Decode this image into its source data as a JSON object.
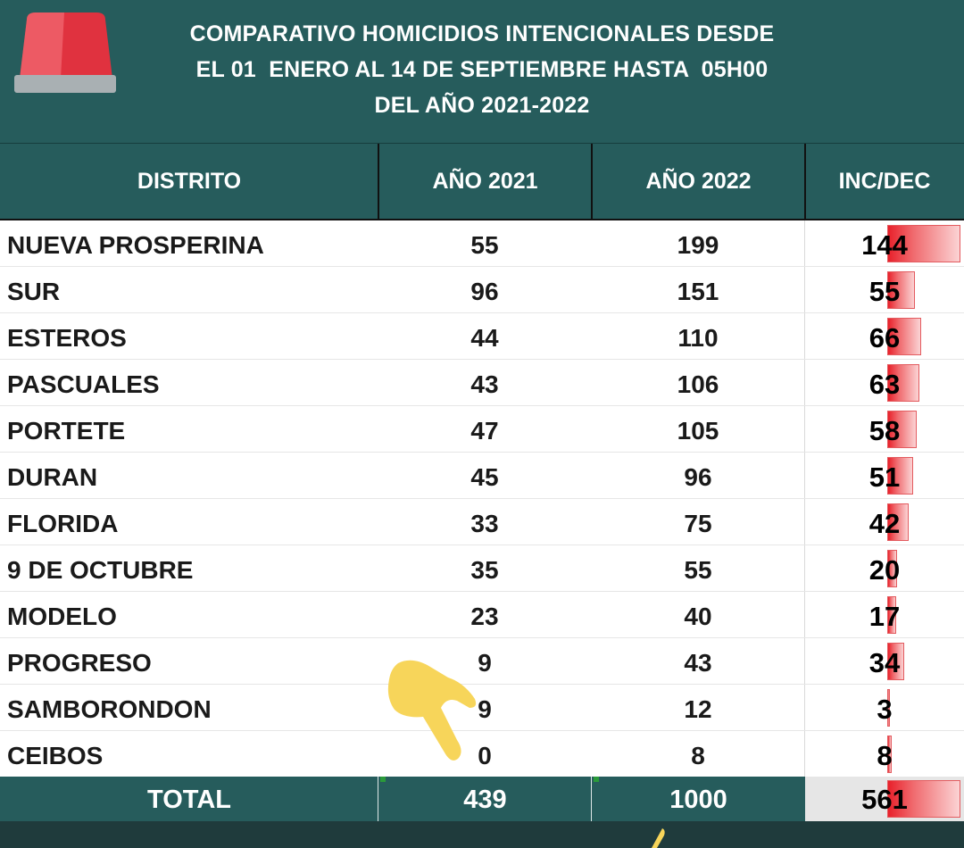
{
  "title": {
    "lines": [
      "COMPARATIVO HOMICIDIOS INTENCIONALES DESDE",
      "EL 01  ENERO AL 14 DE SEPTIEMBRE HASTA  05H00",
      "DEL AÑO 2021-2022"
    ]
  },
  "icons": {
    "siren": "siren-light-icon",
    "hand": "pointing-hand-emoji"
  },
  "colors": {
    "header_bg": "#265c5c",
    "bar_red": "#e8202a",
    "hand_yellow": "#f7d55a"
  },
  "table": {
    "headers": [
      "DISTRITO",
      "AÑO 2021",
      "AÑO 2022",
      "INC/DEC"
    ],
    "rows": [
      {
        "distrito": "NUEVA PROSPERINA",
        "y2021": "55",
        "y2022": "199",
        "inc": "144",
        "inc_value": 144
      },
      {
        "distrito": "SUR",
        "y2021": "96",
        "y2022": "151",
        "inc": "55",
        "inc_value": 55
      },
      {
        "distrito": "ESTEROS",
        "y2021": "44",
        "y2022": "110",
        "inc": "66",
        "inc_value": 66
      },
      {
        "distrito": "PASCUALES",
        "y2021": "43",
        "y2022": "106",
        "inc": "63",
        "inc_value": 63
      },
      {
        "distrito": "PORTETE",
        "y2021": "47",
        "y2022": "105",
        "inc": "58",
        "inc_value": 58
      },
      {
        "distrito": "DURAN",
        "y2021": "45",
        "y2022": "96",
        "inc": "51",
        "inc_value": 51
      },
      {
        "distrito": "FLORIDA",
        "y2021": "33",
        "y2022": "75",
        "inc": "42",
        "inc_value": 42
      },
      {
        "distrito": "9 DE OCTUBRE",
        "y2021": "35",
        "y2022": "55",
        "inc": "20",
        "inc_value": 20
      },
      {
        "distrito": "MODELO",
        "y2021": "23",
        "y2022": "40",
        "inc": "17",
        "inc_value": 17
      },
      {
        "distrito": "PROGRESO",
        "y2021": "9",
        "y2022": "43",
        "inc": "34",
        "inc_value": 34
      },
      {
        "distrito": "SAMBORONDON",
        "y2021": "9",
        "y2022": "12",
        "inc": "3",
        "inc_value": 3
      },
      {
        "distrito": "CEIBOS",
        "y2021": "0",
        "y2022": "8",
        "inc": "8",
        "inc_value": 8
      }
    ],
    "total": {
      "label": "TOTAL",
      "y2021": "439",
      "y2022": "1000",
      "inc": "561",
      "inc_value": 561
    }
  }
}
